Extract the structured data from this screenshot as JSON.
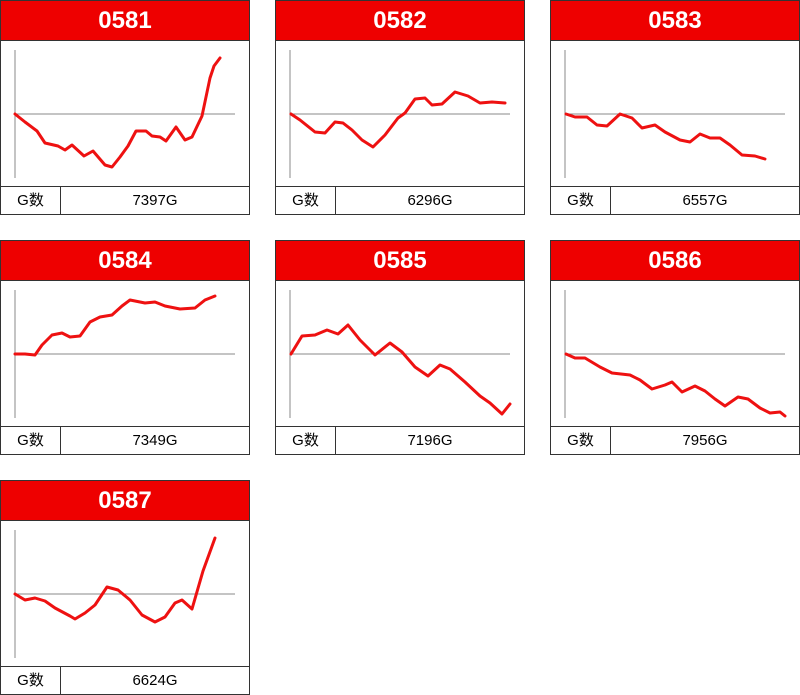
{
  "cards": [
    {
      "title": "0581",
      "label": "G数",
      "games": "7397G",
      "chart": {
        "type": "line",
        "xlim": [
          0,
          220
        ],
        "ylim": [
          -64,
          64
        ],
        "yticks": [
          0
        ],
        "x": [
          0,
          10,
          22,
          30,
          43,
          50,
          57,
          69,
          78,
          90,
          97,
          105,
          113,
          121,
          131,
          137,
          145,
          151,
          161,
          170,
          177,
          187,
          195,
          199,
          205
        ],
        "values": [
          0,
          -8,
          -17,
          -29,
          -32,
          -36,
          -31,
          -42,
          -37,
          -51,
          -53,
          -43,
          -32,
          -17,
          -17,
          -22,
          -23,
          -27,
          -13,
          -26,
          -23,
          -2,
          36,
          48,
          56
        ],
        "color": "#ee1111"
      }
    },
    {
      "title": "0582",
      "label": "G数",
      "games": "6296G",
      "chart": {
        "type": "line",
        "xlim": [
          0,
          220
        ],
        "ylim": [
          -64,
          64
        ],
        "yticks": [
          0
        ],
        "x": [
          1,
          10,
          25,
          35,
          45,
          53,
          62,
          72,
          83,
          95,
          108,
          115,
          125,
          135,
          142,
          152,
          165,
          178,
          190,
          202,
          215
        ],
        "values": [
          0,
          -6,
          -18,
          -19,
          -8,
          -9,
          -16,
          -26,
          -33,
          -21,
          -4,
          1,
          15,
          16,
          9,
          10,
          22,
          18,
          11,
          12,
          11
        ],
        "color": "#ee1111"
      }
    },
    {
      "title": "0583",
      "label": "G数",
      "games": "6557G",
      "chart": {
        "type": "line",
        "xlim": [
          0,
          220
        ],
        "ylim": [
          -64,
          64
        ],
        "yticks": [
          0
        ],
        "x": [
          1,
          10,
          22,
          32,
          42,
          55,
          67,
          77,
          90,
          100,
          115,
          125,
          135,
          145,
          155,
          165,
          177,
          190,
          200
        ],
        "values": [
          0,
          -3,
          -3,
          -11,
          -12,
          0,
          -4,
          -14,
          -11,
          -18,
          -26,
          -28,
          -20,
          -24,
          -24,
          -31,
          -41,
          -42,
          -45
        ],
        "color": "#ee1111"
      }
    },
    {
      "title": "0584",
      "label": "G数",
      "games": "7349G",
      "chart": {
        "type": "line",
        "xlim": [
          0,
          220
        ],
        "ylim": [
          -64,
          64
        ],
        "yticks": [
          0
        ],
        "x": [
          0,
          10,
          20,
          27,
          37,
          47,
          55,
          65,
          75,
          85,
          97,
          107,
          115,
          130,
          140,
          150,
          165,
          180,
          190,
          200
        ],
        "values": [
          0,
          0,
          -1,
          9,
          19,
          21,
          17,
          18,
          32,
          37,
          39,
          48,
          54,
          51,
          52,
          48,
          45,
          46,
          54,
          58
        ],
        "color": "#ee1111"
      }
    },
    {
      "title": "0585",
      "label": "G数",
      "games": "7196G",
      "chart": {
        "type": "line",
        "xlim": [
          0,
          220
        ],
        "ylim": [
          -64,
          64
        ],
        "yticks": [
          0
        ],
        "x": [
          1,
          12,
          25,
          37,
          48,
          58,
          70,
          85,
          100,
          112,
          125,
          138,
          150,
          160,
          175,
          190,
          200,
          212,
          220
        ],
        "values": [
          0,
          18,
          19,
          24,
          20,
          29,
          14,
          -1,
          11,
          2,
          -13,
          -22,
          -11,
          -15,
          -28,
          -42,
          -49,
          -60,
          -50
        ],
        "color": "#ee1111"
      }
    },
    {
      "title": "0586",
      "label": "G数",
      "games": "7956G",
      "chart": {
        "type": "line",
        "xlim": [
          0,
          220
        ],
        "ylim": [
          -64,
          64
        ],
        "yticks": [
          0
        ],
        "x": [
          1,
          10,
          20,
          35,
          47,
          65,
          75,
          87,
          100,
          107,
          117,
          130,
          140,
          150,
          160,
          173,
          183,
          195,
          205,
          215,
          220
        ],
        "values": [
          0,
          -4,
          -4,
          -13,
          -19,
          -21,
          -26,
          -35,
          -31,
          -28,
          -38,
          -32,
          -37,
          -45,
          -52,
          -43,
          -45,
          -54,
          -59,
          -58,
          -62
        ],
        "color": "#ee1111"
      }
    },
    {
      "title": "0587",
      "label": "G数",
      "games": "6624G",
      "chart": {
        "type": "line",
        "xlim": [
          0,
          220
        ],
        "ylim": [
          -64,
          64
        ],
        "yticks": [
          0
        ],
        "x": [
          0,
          10,
          20,
          30,
          40,
          55,
          60,
          70,
          80,
          92,
          103,
          115,
          127,
          140,
          150,
          160,
          167,
          177,
          188,
          200
        ],
        "values": [
          0,
          -6,
          -4,
          -7,
          -14,
          -22,
          -25,
          -19,
          -11,
          7,
          4,
          -6,
          -21,
          -28,
          -23,
          -9,
          -6,
          -15,
          23,
          56
        ],
        "color": "#ee1111"
      }
    }
  ]
}
